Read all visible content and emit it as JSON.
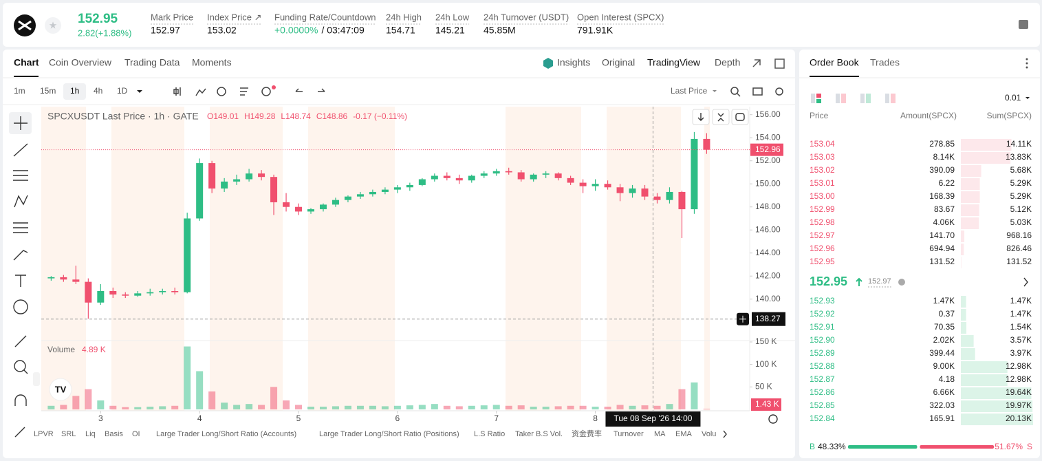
{
  "header": {
    "symbol_price": "152.95",
    "change": "2.82(+1.88%)",
    "stats": [
      {
        "label": "Mark Price",
        "value": "152.97"
      },
      {
        "label": "Index Price ↗",
        "value": "153.02"
      },
      {
        "label": "Funding Rate/Countdown",
        "value": "+0.0000%",
        "extra": "/ 03:47:09"
      },
      {
        "label": "24h High",
        "value": "154.71"
      },
      {
        "label": "24h Low",
        "value": "145.21"
      },
      {
        "label": "24h Turnover (USDT)",
        "value": "45.85M"
      },
      {
        "label": "Open Interest (SPCX)",
        "value": "791.91K"
      }
    ]
  },
  "chart_tabs": [
    "Chart",
    "Coin Overview",
    "Trading Data",
    "Moments"
  ],
  "view_tabs": [
    "Insights",
    "Original",
    "TradingView",
    "Depth"
  ],
  "intervals": [
    "1m",
    "15m",
    "1h",
    "4h",
    "1D"
  ],
  "price_type": "Last Price",
  "chart_data": {
    "type": "candlestick",
    "title": "SPCXUSDT Last Price · 1h · GATE",
    "ohlc_legend": [
      "O149.01",
      "H149.28",
      "L148.74",
      "C148.86",
      "-0.17 (−0.11%)"
    ],
    "x": [
      2.5,
      2.625,
      2.75,
      2.875,
      3,
      3.125,
      3.25,
      3.375,
      3.5,
      3.625,
      3.75,
      3.875,
      4,
      4.125,
      4.25,
      4.375,
      4.5,
      4.625,
      4.75,
      4.875,
      5,
      5.125,
      5.25,
      5.375,
      5.5,
      5.625,
      5.75,
      5.875,
      6,
      6.125,
      6.25,
      6.375,
      6.5,
      6.625,
      6.75,
      6.875,
      7,
      7.125,
      7.25,
      7.375,
      7.5,
      7.625,
      7.75,
      7.875,
      8,
      8.125,
      8.25,
      8.375,
      8.5,
      8.625,
      8.75,
      8.875,
      9,
      9.125
    ],
    "open": [
      141.8,
      141.9,
      141.7,
      141.5,
      139.7,
      140.7,
      140.4,
      140.3,
      140.5,
      140.6,
      140.7,
      140.6,
      147.0,
      151.8,
      149.6,
      150.2,
      150.4,
      150.9,
      150.6,
      148.4,
      148.0,
      147.6,
      147.8,
      148.2,
      148.6,
      148.9,
      149.1,
      149.3,
      149.5,
      149.7,
      149.9,
      150.4,
      150.7,
      150.5,
      150.3,
      150.7,
      150.9,
      151.1,
      151.0,
      150.4,
      150.8,
      150.9,
      150.5,
      150.1,
      149.8,
      150.0,
      149.7,
      149.2,
      149.6,
      148.9,
      148.6,
      149.3,
      147.8,
      153.9
    ],
    "high": [
      142.0,
      142.1,
      142.9,
      141.8,
      141.3,
      141.0,
      140.6,
      140.7,
      140.9,
      140.9,
      141.0,
      147.5,
      152.2,
      152.0,
      150.5,
      150.8,
      151.3,
      151.2,
      150.8,
      149.2,
      148.3,
      147.9,
      148.3,
      148.8,
      149.0,
      149.3,
      149.5,
      149.7,
      149.9,
      150.1,
      150.5,
      150.9,
      151.0,
      150.8,
      150.8,
      151.1,
      151.3,
      151.4,
      151.2,
      150.9,
      151.1,
      151.0,
      150.7,
      150.4,
      150.4,
      150.3,
      150.0,
      149.9,
      149.9,
      149.2,
      149.7,
      149.4,
      154.5,
      154.4
    ],
    "low": [
      141.6,
      141.5,
      141.3,
      138.3,
      139.5,
      140.1,
      140.1,
      140.2,
      140.3,
      140.4,
      140.4,
      140.5,
      146.8,
      149.2,
      149.3,
      149.9,
      150.2,
      150.3,
      147.3,
      147.6,
      147.3,
      147.4,
      147.6,
      148.0,
      148.4,
      148.7,
      148.9,
      149.1,
      149.2,
      149.4,
      149.8,
      150.2,
      150.3,
      150.0,
      150.1,
      150.5,
      150.7,
      150.8,
      150.2,
      150.2,
      150.5,
      150.3,
      149.9,
      149.2,
      149.4,
      149.5,
      148.5,
      148.8,
      148.6,
      148.3,
      148.3,
      145.3,
      147.4,
      152.6
    ],
    "close": [
      141.9,
      141.7,
      141.5,
      139.7,
      140.7,
      140.4,
      140.3,
      140.5,
      140.6,
      140.7,
      140.6,
      147.0,
      151.8,
      149.6,
      150.2,
      150.4,
      150.9,
      150.6,
      148.4,
      148.0,
      147.6,
      147.8,
      148.2,
      148.6,
      148.9,
      149.1,
      149.3,
      149.5,
      149.7,
      149.9,
      150.4,
      150.7,
      150.5,
      150.3,
      150.7,
      150.9,
      151.1,
      151.0,
      150.4,
      150.8,
      150.9,
      150.5,
      150.1,
      149.8,
      150.0,
      149.7,
      149.2,
      149.6,
      148.9,
      148.6,
      149.3,
      147.8,
      153.9,
      152.96
    ],
    "xlim": [
      2.4,
      9.56
    ],
    "xticks": [
      3,
      4,
      5,
      6,
      7,
      8
    ],
    "ylim": [
      136.7,
      156.7
    ],
    "yticks": [
      {
        "value": 140,
        "label": "140.00"
      },
      {
        "value": 142,
        "label": "142.00"
      },
      {
        "value": 144,
        "label": "144.00"
      },
      {
        "value": 146,
        "label": "146.00"
      },
      {
        "value": 148,
        "label": "148.00"
      },
      {
        "value": 150,
        "label": "150.00"
      },
      {
        "value": 152,
        "label": "152.00"
      },
      {
        "value": 154,
        "label": "154.00"
      },
      {
        "value": 156,
        "label": "156.00"
      }
    ],
    "grid": false,
    "up_color": "#2ebd85",
    "down_color": "#f0506e",
    "last_price": 152.96,
    "crosshair": {
      "x": 8.583,
      "price": 138.27,
      "time_label": "Tue 08 Sep '26  14:00"
    },
    "volume": {
      "title": "Volume",
      "current_label": "4.89 K",
      "last_label": "1.43 K",
      "values": [
        8000,
        10000,
        30000,
        45000,
        20000,
        8000,
        5000,
        5000,
        6000,
        7000,
        8000,
        140000,
        85000,
        40000,
        15000,
        10000,
        12000,
        10000,
        50000,
        20000,
        10000,
        6000,
        6000,
        7000,
        8000,
        8000,
        8000,
        7000,
        8000,
        9000,
        10000,
        12000,
        8000,
        7000,
        8000,
        9000,
        10000,
        8000,
        9000,
        6000,
        6000,
        7000,
        8000,
        8000,
        6000,
        6000,
        10000,
        8000,
        9000,
        8000,
        12000,
        45000,
        60000,
        1430
      ],
      "ylim": [
        0,
        150000
      ],
      "yticks": [
        {
          "value": 50000,
          "label": "50 K"
        },
        {
          "value": 100000,
          "label": "100 K"
        },
        {
          "value": 150000,
          "label": "150 K"
        }
      ]
    }
  },
  "indicators": [
    "LPVR",
    "SRL",
    "Liq",
    "Basis",
    "OI",
    "Large Trader Long/Short Ratio (Accounts)",
    "Large Trader Long/Short Ratio (Positions)",
    "L.S Ratio",
    "Taker B.S Vol.",
    "资金费率",
    "Turnover",
    "MA",
    "EMA",
    "Volu"
  ],
  "order_book": {
    "tabs": [
      "Order Book",
      "Trades"
    ],
    "precision": "0.01",
    "columns": [
      "Price",
      "Amount(SPCX)",
      "Sum(SPCX)"
    ],
    "asks": [
      [
        "153.04",
        "278.85",
        {
          "value": 14110,
          "label": "14.11K"
        }
      ],
      [
        "153.03",
        "8.14K",
        {
          "value": 13830,
          "label": "13.83K"
        }
      ],
      [
        "153.02",
        "390.09",
        {
          "value": 5680,
          "label": "5.68K"
        }
      ],
      [
        "153.01",
        "6.22",
        {
          "value": 5290,
          "label": "5.29K"
        }
      ],
      [
        "153.00",
        "168.39",
        {
          "value": 5290,
          "label": "5.29K"
        }
      ],
      [
        "152.99",
        "83.67",
        {
          "value": 5120,
          "label": "5.12K"
        }
      ],
      [
        "152.98",
        "4.06K",
        {
          "value": 5030,
          "label": "5.03K"
        }
      ],
      [
        "152.97",
        "141.70",
        968.16
      ],
      [
        "152.96",
        "694.94",
        826.46
      ],
      [
        "152.95",
        "131.52",
        131.52
      ]
    ],
    "mid_price": "152.95",
    "mark_price": "152.97",
    "bids": [
      [
        "152.93",
        "1.47K",
        {
          "value": 1470,
          "label": "1.47K"
        }
      ],
      [
        "152.92",
        "0.37",
        {
          "value": 1470,
          "label": "1.47K"
        }
      ],
      [
        "152.91",
        "70.35",
        {
          "value": 1540,
          "label": "1.54K"
        }
      ],
      [
        "152.90",
        "2.02K",
        {
          "value": 3570,
          "label": "3.57K"
        }
      ],
      [
        "152.89",
        "399.44",
        {
          "value": 3970,
          "label": "3.97K"
        }
      ],
      [
        "152.88",
        "9.00K",
        {
          "value": 12980,
          "label": "12.98K"
        }
      ],
      [
        "152.87",
        "4.18",
        {
          "value": 12980,
          "label": "12.98K"
        }
      ],
      [
        "152.86",
        "6.66K",
        {
          "value": 19640,
          "label": "19.64K"
        }
      ],
      [
        "152.85",
        "322.03",
        {
          "value": 19970,
          "label": "19.97K"
        }
      ],
      [
        "152.84",
        "165.91",
        {
          "value": 20130,
          "label": "20.13K"
        }
      ]
    ],
    "ratio": {
      "buy_tag": "B",
      "sell_tag": "S",
      "buy": {
        "value": 48.33,
        "label": "48.33%"
      },
      "sell": {
        "value": 51.67,
        "label": "51.67%"
      }
    }
  }
}
